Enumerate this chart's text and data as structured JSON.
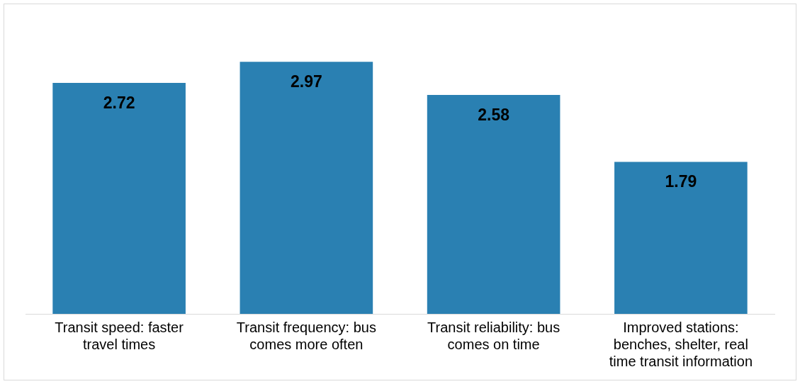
{
  "chart_data": {
    "type": "bar",
    "categories": [
      "Transit speed: faster travel times",
      "Transit frequency: bus comes more often",
      "Transit reliability: bus comes on time",
      "Improved stations: benches, shelter, real time transit information"
    ],
    "values": [
      2.72,
      2.97,
      2.58,
      1.79
    ],
    "color": "#2a80b2",
    "data_labels": true,
    "grid": false,
    "legend": false
  }
}
